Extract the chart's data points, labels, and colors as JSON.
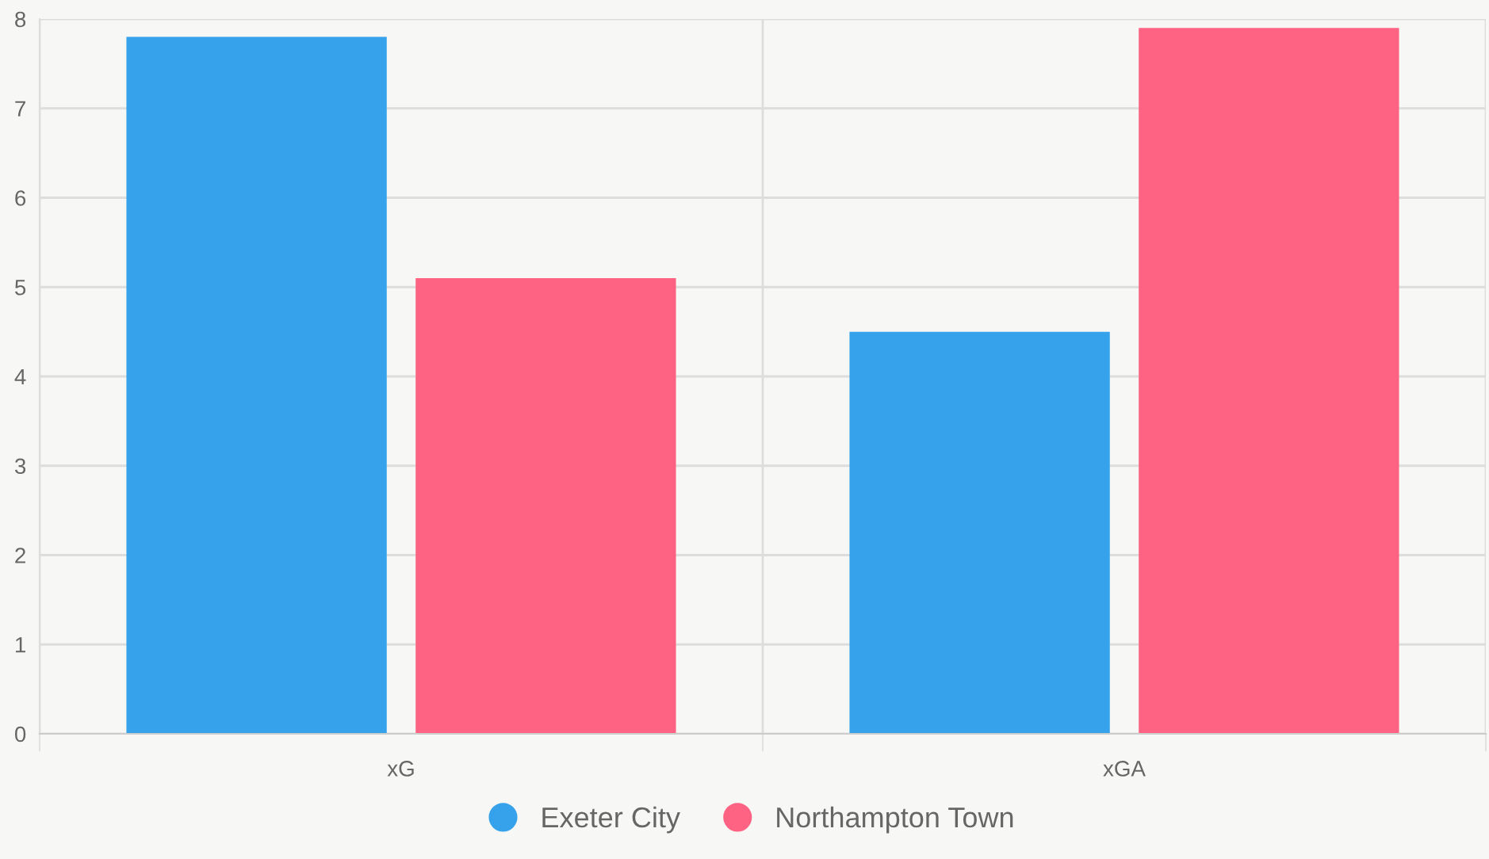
{
  "chart_data": {
    "type": "bar",
    "categories": [
      "xG",
      "xGA"
    ],
    "series": [
      {
        "name": "Exeter City",
        "color": "#36a2eb",
        "values": [
          7.8,
          4.5
        ]
      },
      {
        "name": "Northampton Town",
        "color": "#ff6384",
        "values": [
          5.1,
          7.9
        ]
      }
    ],
    "ylim": [
      0,
      8
    ],
    "yticks": [
      0,
      1,
      2,
      3,
      4,
      5,
      6,
      7,
      8
    ],
    "grid": true,
    "legend": "bottom",
    "marker": "circle"
  }
}
